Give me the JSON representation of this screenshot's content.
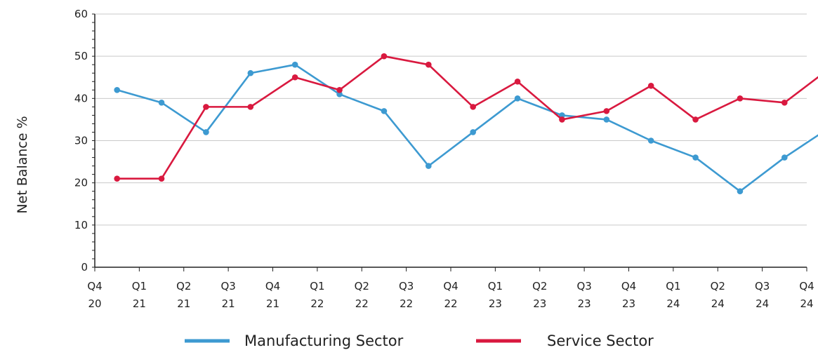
{
  "chart_data": {
    "type": "line",
    "ylabel": "Net Balance %",
    "xlabel": "",
    "ylim": [
      0,
      60
    ],
    "yticks": [
      0,
      10,
      20,
      30,
      40,
      50,
      60
    ],
    "grid": "horizontal",
    "legend": "bottom",
    "x_boundaries": [
      [
        "Q4",
        "20"
      ],
      [
        "Q1",
        "21"
      ],
      [
        "Q2",
        "21"
      ],
      [
        "Q3",
        "21"
      ],
      [
        "Q4",
        "21"
      ],
      [
        "Q1",
        "22"
      ],
      [
        "Q2",
        "22"
      ],
      [
        "Q3",
        "22"
      ],
      [
        "Q4",
        "22"
      ],
      [
        "Q1",
        "23"
      ],
      [
        "Q2",
        "23"
      ],
      [
        "Q3",
        "23"
      ],
      [
        "Q4",
        "23"
      ],
      [
        "Q1",
        "24"
      ],
      [
        "Q2",
        "24"
      ],
      [
        "Q3",
        "24"
      ],
      [
        "Q4",
        "24"
      ]
    ],
    "series": [
      {
        "name": "Manufacturing Sector",
        "color": "#3d9ad1",
        "values": [
          42,
          39,
          32,
          46,
          48,
          41,
          37,
          24,
          32,
          40,
          36,
          35,
          30,
          26,
          18,
          26,
          33
        ]
      },
      {
        "name": "Service Sector",
        "color": "#d9193f",
        "values": [
          21,
          21,
          38,
          38,
          45,
          42,
          50,
          48,
          38,
          44,
          35,
          37,
          43,
          35,
          40,
          39,
          47
        ]
      }
    ]
  }
}
